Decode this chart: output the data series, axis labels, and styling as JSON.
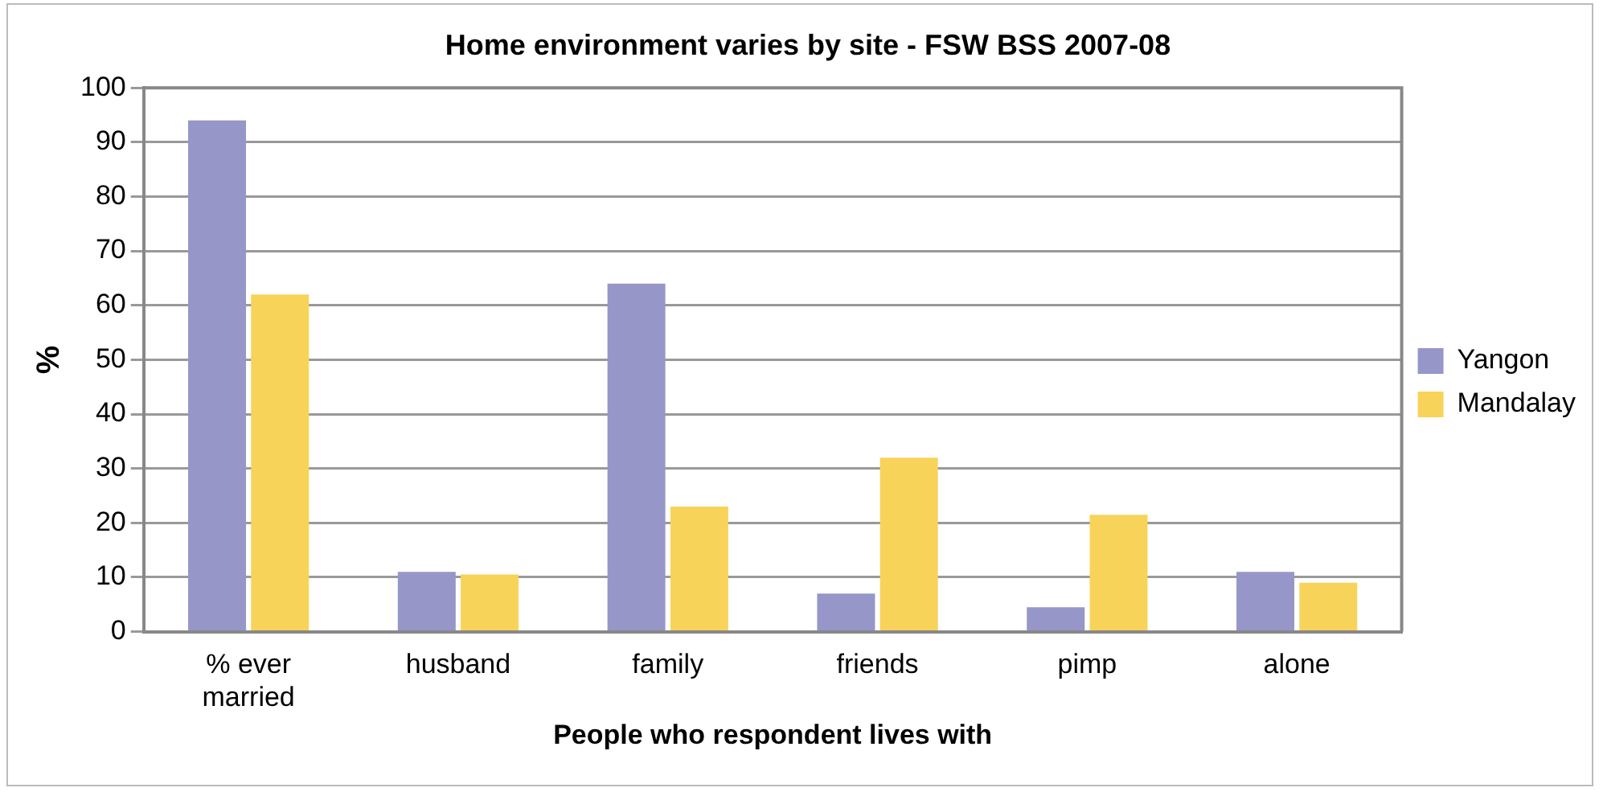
{
  "chart_data": {
    "type": "bar",
    "title": "Home environment varies by site - FSW BSS 2007-08",
    "xlabel": "People who respondent lives with",
    "ylabel": "%",
    "categories": [
      "% ever married",
      "husband",
      "family",
      "friends",
      "pimp",
      "alone"
    ],
    "series": [
      {
        "name": "Yangon",
        "color": "#9696c8",
        "values": [
          94,
          11,
          64,
          7,
          4.5,
          11
        ]
      },
      {
        "name": "Mandalay",
        "color": "#f7d35a",
        "values": [
          62,
          10.5,
          23,
          32,
          21.5,
          9
        ]
      }
    ],
    "ylim": [
      0,
      100
    ],
    "yticks": [
      0,
      10,
      20,
      30,
      40,
      50,
      60,
      70,
      80,
      90,
      100
    ],
    "grid": "y",
    "legend": "right"
  }
}
